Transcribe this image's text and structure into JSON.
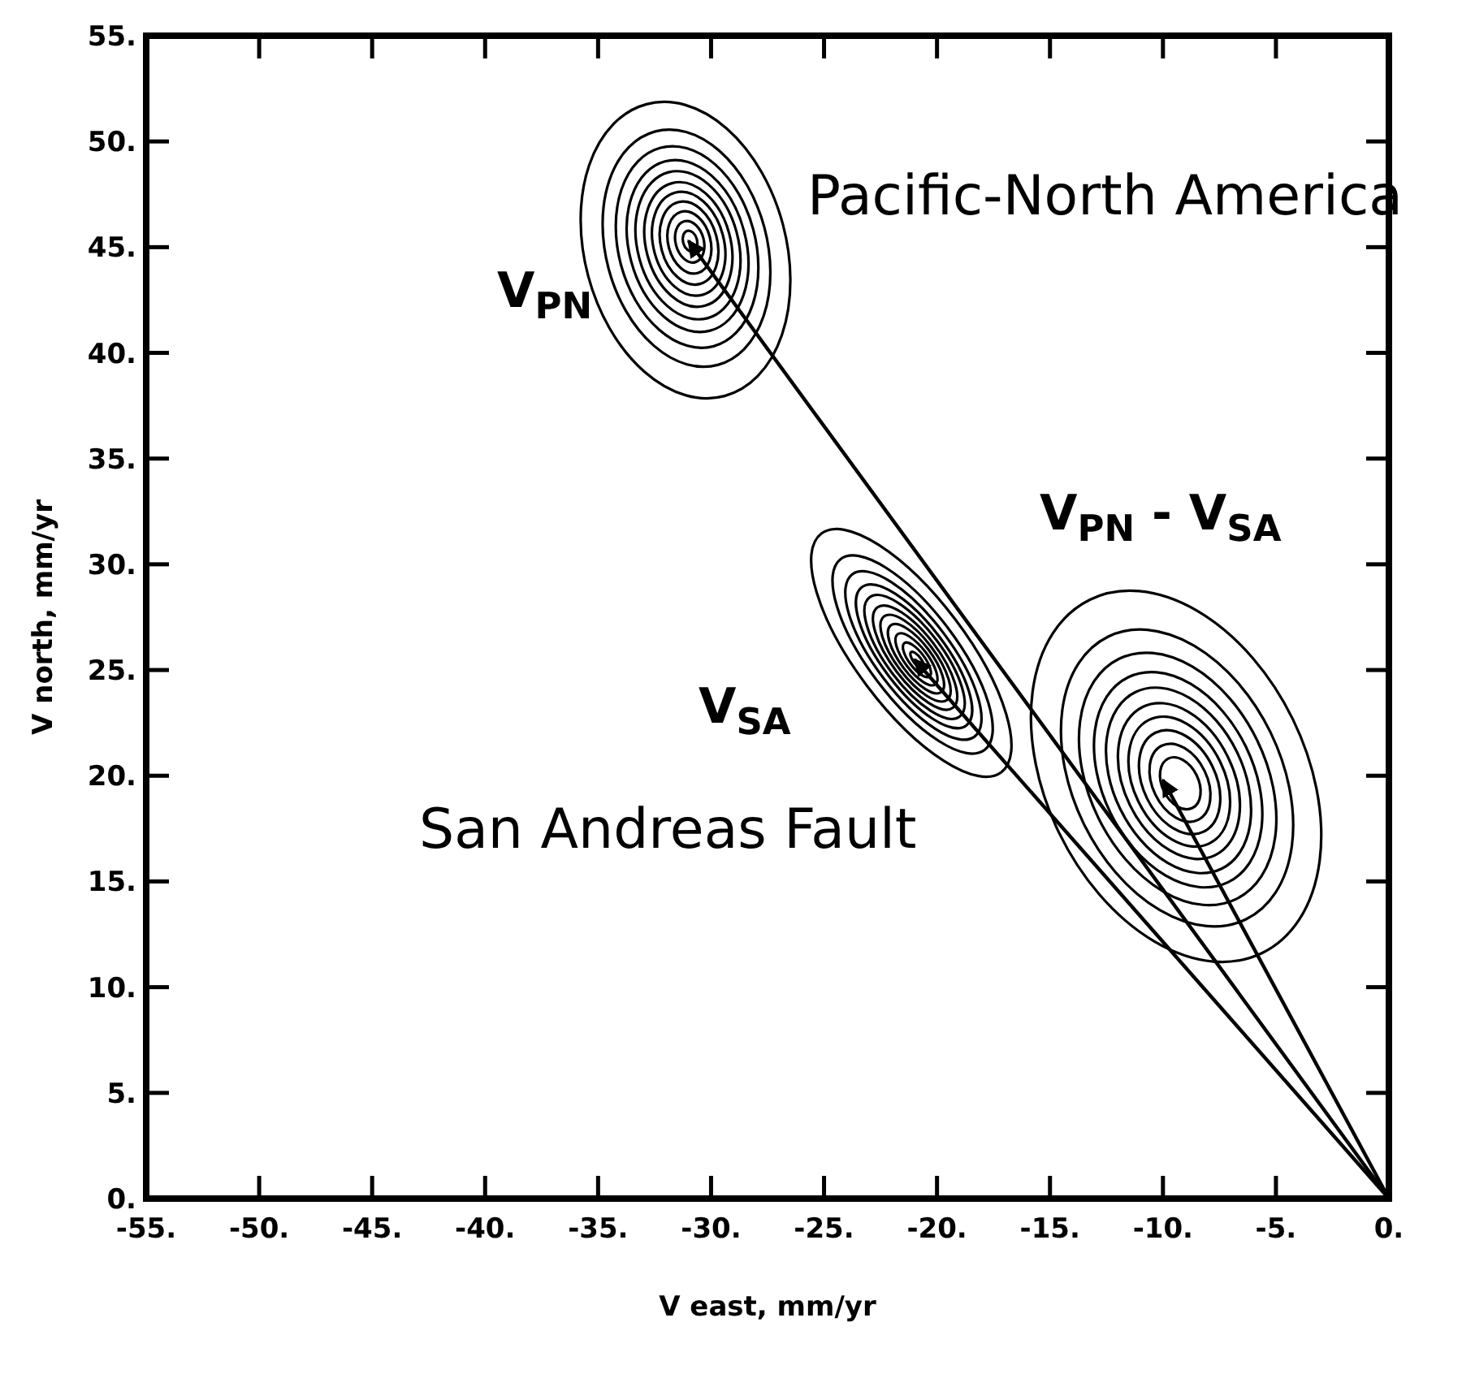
{
  "chart_data": {
    "type": "line",
    "xlabel": "V east, mm/yr",
    "ylabel": "V north, mm/yr",
    "xlim": [
      -55,
      0
    ],
    "ylim": [
      0,
      55
    ],
    "xticks": [
      {
        "value": -55,
        "label": "-55."
      },
      {
        "value": -50,
        "label": "-50."
      },
      {
        "value": -45,
        "label": "-45."
      },
      {
        "value": -40,
        "label": "-40."
      },
      {
        "value": -35,
        "label": "-35."
      },
      {
        "value": -30,
        "label": "-30."
      },
      {
        "value": -25,
        "label": "-25."
      },
      {
        "value": -20,
        "label": "-20."
      },
      {
        "value": -15,
        "label": "-15."
      },
      {
        "value": -10,
        "label": "-10."
      },
      {
        "value": -5,
        "label": "-5."
      },
      {
        "value": 0,
        "label": "0."
      }
    ],
    "yticks": [
      {
        "value": 0,
        "label": "0."
      },
      {
        "value": 5,
        "label": "5."
      },
      {
        "value": 10,
        "label": "10."
      },
      {
        "value": 15,
        "label": "15."
      },
      {
        "value": 20,
        "label": "20."
      },
      {
        "value": 25,
        "label": "25."
      },
      {
        "value": 30,
        "label": "30."
      },
      {
        "value": 35,
        "label": "35."
      },
      {
        "value": 40,
        "label": "40."
      },
      {
        "value": 45,
        "label": "45."
      },
      {
        "value": 50,
        "label": "50."
      },
      {
        "value": 55,
        "label": "55."
      }
    ],
    "grid": false,
    "line_style": "solid",
    "series": [
      {
        "color": "#000000",
        "x": [
          0,
          -31
        ],
        "values": [
          0,
          45.3
        ]
      },
      {
        "color": "#000000",
        "x": [
          0,
          -21
        ],
        "values": [
          0,
          25.5
        ]
      },
      {
        "color": "#000000",
        "x": [
          0,
          -10
        ],
        "values": [
          0,
          19.8
        ]
      }
    ],
    "annotations": [
      "Pacific-North America",
      "V$_{PN}$",
      "V$_{PN}$ - V$_{SA}$",
      "V$_{SA}$",
      "San Andreas Fault"
    ]
  }
}
